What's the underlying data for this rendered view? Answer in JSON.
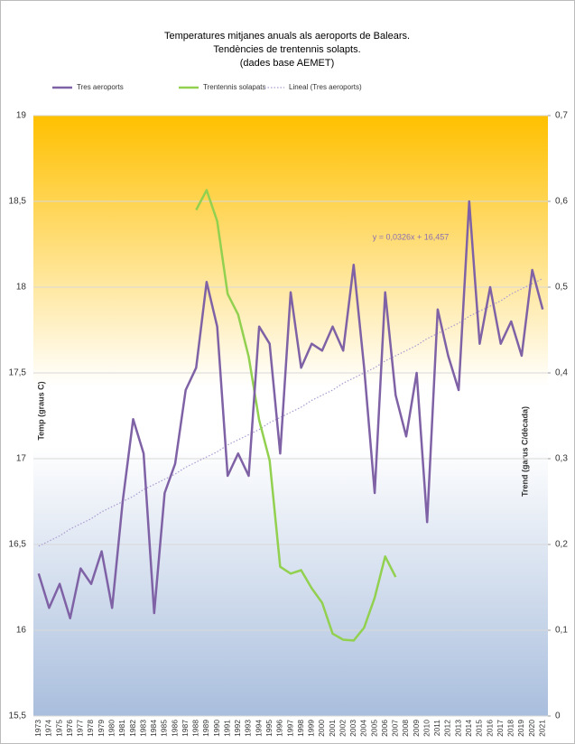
{
  "chart_data": {
    "type": "line",
    "title": [
      "Temperatures mitjanes anuals als aeroports de Balears.",
      "Tendències de trentennis solapts.",
      "(dades base AEMET)"
    ],
    "y_label": "Temp (graus C)",
    "y2_label": "Trend (garus C/dècada)",
    "annotation": "y = 0,0326x + 16,457",
    "categories": [
      "1973",
      "1974",
      "1975",
      "1976",
      "1977",
      "1978",
      "1979",
      "1980",
      "1981",
      "1982",
      "1983",
      "1984",
      "1985",
      "1986",
      "1987",
      "1988",
      "1989",
      "1990",
      "1991",
      "1992",
      "1993",
      "1994",
      "1995",
      "1996",
      "1997",
      "1998",
      "1999",
      "2000",
      "2001",
      "2002",
      "2003",
      "2004",
      "2005",
      "2006",
      "2007",
      "2008",
      "2009",
      "2010",
      "2011",
      "2012",
      "2013",
      "2014",
      "2015",
      "2016",
      "2017",
      "2018",
      "2019",
      "2020",
      "2021"
    ],
    "series": [
      {
        "name": "Tres aeroports",
        "color": "#7f62a6",
        "axis": "y",
        "values": [
          16.33,
          16.13,
          16.27,
          16.07,
          16.36,
          16.27,
          16.46,
          16.13,
          16.75,
          17.23,
          17.03,
          16.1,
          16.8,
          16.97,
          17.4,
          17.53,
          18.03,
          17.77,
          16.9,
          17.03,
          16.9,
          17.77,
          17.67,
          17.03,
          17.97,
          17.53,
          17.67,
          17.63,
          17.77,
          17.63,
          18.13,
          17.53,
          16.8,
          17.97,
          17.37,
          17.13,
          17.5,
          16.63,
          17.87,
          17.6,
          17.4,
          18.5,
          17.67,
          18.0,
          17.67,
          17.8,
          17.6,
          18.1,
          17.87
        ]
      },
      {
        "name": "Trentennis solapats",
        "color": "#92d050",
        "axis": "y2",
        "values": [
          null,
          null,
          null,
          null,
          null,
          null,
          null,
          null,
          null,
          null,
          null,
          null,
          null,
          null,
          null,
          0.59,
          0.613,
          0.577,
          0.492,
          0.468,
          0.419,
          0.345,
          0.298,
          0.174,
          0.166,
          0.17,
          0.149,
          0.132,
          0.096,
          0.089,
          0.088,
          0.103,
          0.138,
          0.186,
          0.162,
          null,
          null,
          null,
          null,
          null,
          null,
          null,
          null,
          null,
          null,
          null,
          null,
          null,
          null
        ]
      },
      {
        "name": "Lineal  (Tres aeroports)",
        "color": "#a99bd0",
        "axis": "y",
        "dash": "dotted",
        "values": [
          16.49,
          16.52,
          16.55,
          16.59,
          16.62,
          16.65,
          16.69,
          16.72,
          16.75,
          16.78,
          16.82,
          16.85,
          16.88,
          16.91,
          16.95,
          16.98,
          17.01,
          17.04,
          17.08,
          17.11,
          17.14,
          17.17,
          17.21,
          17.24,
          17.27,
          17.3,
          17.34,
          17.37,
          17.4,
          17.44,
          17.47,
          17.5,
          17.53,
          17.57,
          17.6,
          17.63,
          17.66,
          17.7,
          17.73,
          17.76,
          17.79,
          17.83,
          17.86,
          17.89,
          17.92,
          17.96,
          17.99,
          18.02,
          18.05
        ]
      }
    ],
    "ylim": [
      15.5,
      19
    ],
    "yticks": [
      {
        "value": 15.5,
        "label": "15,5"
      },
      16,
      {
        "value": 16.5,
        "label": "16,5"
      },
      17,
      {
        "value": 17.5,
        "label": "17,5"
      },
      18,
      {
        "value": 18.5,
        "label": "18,5"
      },
      19
    ],
    "y2lim": [
      0,
      0.7
    ],
    "y2ticks": [
      0,
      {
        "value": 0.1,
        "label": "0,1"
      },
      {
        "value": 0.2,
        "label": "0,2"
      },
      {
        "value": 0.3,
        "label": "0,3"
      },
      {
        "value": 0.4,
        "label": "0,4"
      },
      {
        "value": 0.5,
        "label": "0,5"
      },
      {
        "value": 0.6,
        "label": "0,6"
      },
      {
        "value": 0.7,
        "label": "0,7"
      }
    ],
    "grid": true,
    "legend": "top"
  }
}
